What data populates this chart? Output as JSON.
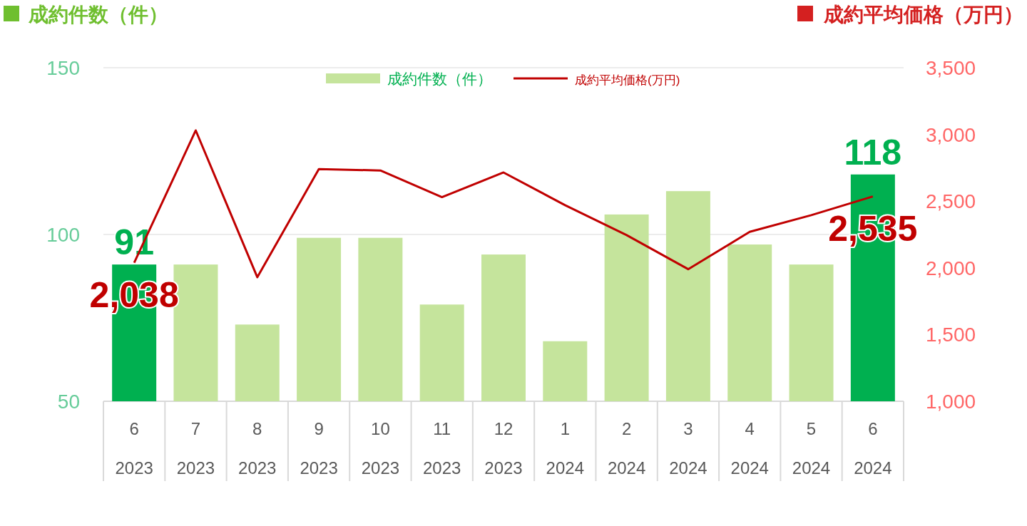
{
  "chart_data": {
    "type": "bar",
    "ylabel": "成約件数（件）",
    "y2label": "成約平均価格（万円）",
    "categories": [
      "6\n2023",
      "7\n2023",
      "8\n2023",
      "9\n2023",
      "10\n2023",
      "11\n2023",
      "12\n2023",
      "1\n2024",
      "2\n2024",
      "3\n2024",
      "4\n2024",
      "5\n2024",
      "6\n2024"
    ],
    "series": [
      {
        "name": "成約件数（件）",
        "color": "#c5e49c",
        "colors": [
          "#00b050",
          "#c5e49c",
          "#c5e49c",
          "#c5e49c",
          "#c5e49c",
          "#c5e49c",
          "#c5e49c",
          "#c5e49c",
          "#c5e49c",
          "#c5e49c",
          "#c5e49c",
          "#c5e49c",
          "#00b050"
        ],
        "values": [
          91,
          91,
          73,
          99,
          99,
          79,
          94,
          68,
          106,
          113,
          97,
          91,
          118
        ],
        "value_labels": [
          "91",
          null,
          null,
          null,
          null,
          null,
          null,
          null,
          null,
          null,
          null,
          null,
          "118"
        ]
      },
      {
        "name": "成約平均価格(万円)",
        "type": "line",
        "axis": "y2",
        "color": "#c00000",
        "values": [
          2038,
          3030,
          1930,
          2740,
          2730,
          2530,
          2715,
          2470,
          2245,
          1990,
          2270,
          2395,
          2535
        ],
        "value_labels": [
          "2,038",
          null,
          null,
          null,
          null,
          null,
          null,
          null,
          null,
          null,
          null,
          null,
          "2,535"
        ]
      }
    ],
    "ylim": [
      50,
      150
    ],
    "yticks": [
      50,
      100,
      150
    ],
    "y2lim": [
      1000,
      3500
    ],
    "y2ticks": [
      {
        "value": 1000,
        "label": "1,000"
      },
      {
        "value": 1500,
        "label": "1,500"
      },
      {
        "value": 2000,
        "label": "2,000"
      },
      {
        "value": 2500,
        "label": "2,500"
      },
      {
        "value": 3000,
        "label": "3,000"
      },
      {
        "value": 3500,
        "label": "3,500"
      }
    ],
    "grid": "y",
    "legend": "top",
    "marker": "none",
    "line_style": "solid"
  }
}
